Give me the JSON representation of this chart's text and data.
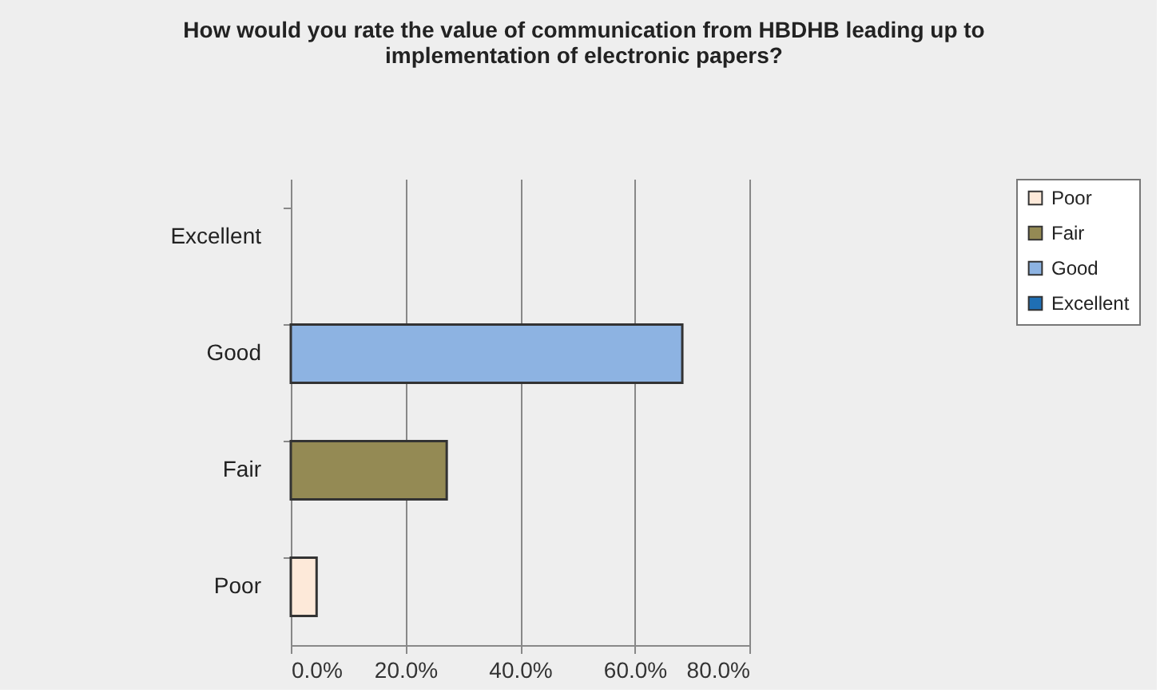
{
  "chart_data": {
    "type": "bar",
    "orientation": "horizontal",
    "title": "How would you rate the value of communication from HBDHB leading up to implementation of electronic papers?",
    "categories": [
      "Excellent",
      "Good",
      "Fair",
      "Poor"
    ],
    "series": [
      {
        "name": "Poor",
        "color": "#fde9d9",
        "values": [
          null,
          null,
          null,
          4.5
        ]
      },
      {
        "name": "Fair",
        "color": "#948a54",
        "values": [
          null,
          null,
          27.2,
          null
        ]
      },
      {
        "name": "Good",
        "color": "#8db3e2",
        "values": [
          null,
          68.3,
          null,
          null
        ]
      },
      {
        "name": "Excellent",
        "color": "#1f6fb4",
        "values": [
          0,
          null,
          null,
          null
        ]
      }
    ],
    "xlim": [
      0,
      80
    ],
    "xticks": [
      {
        "value": 0,
        "label": "0.0%"
      },
      {
        "value": 20,
        "label": "20.0%"
      },
      {
        "value": 40,
        "label": "40.0%"
      },
      {
        "value": 60,
        "label": "60.0%"
      },
      {
        "value": 80,
        "label": "80.0%"
      }
    ],
    "grid": "x",
    "legend": "right"
  }
}
